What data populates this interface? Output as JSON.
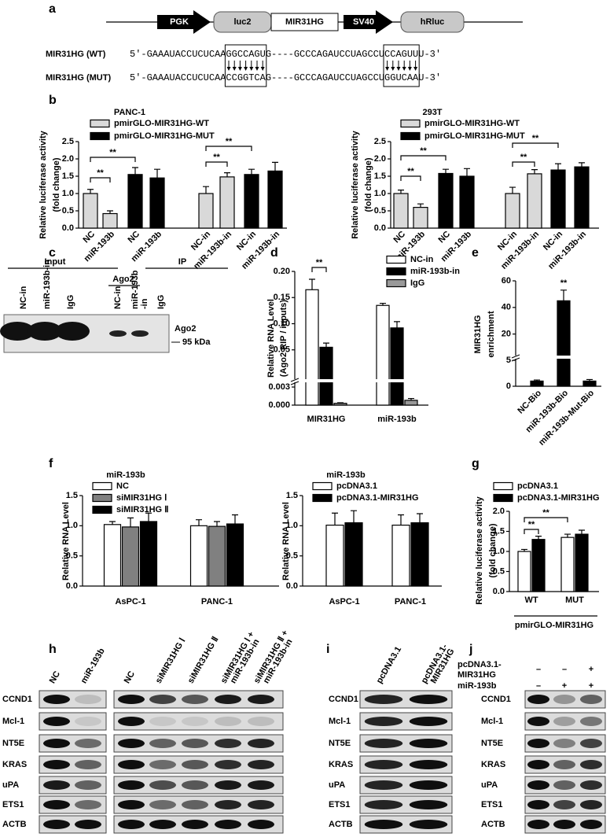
{
  "panel_labels": [
    "a",
    "b",
    "c",
    "d",
    "e",
    "f",
    "g",
    "h",
    "i",
    "j"
  ],
  "construct": {
    "elements": [
      "PGK",
      "luc2",
      "MIR31HG",
      "SV40",
      "hRluc"
    ],
    "sequences": [
      {
        "name": "MIR31HG (WT)",
        "text": "5'-GAAAUACCUCUCAAGGCCAGUG----GCCCAGAUCCUAGCCUCCAGUUU-3'"
      },
      {
        "name": "MIR31HG (MUT)",
        "text": "5'-GAAAUACCUCUCAACCGGTCAG----GCCCAGAUCCUAGCCUGGUCAAU-3'"
      }
    ]
  },
  "chart_data": [
    {
      "type": "bar",
      "title": "PANC-1",
      "ylabel": [
        "Relative luciferase activity",
        "(fold change)"
      ],
      "categories": [
        "NC",
        "miR-193b",
        "NC",
        "miR-193b",
        "NC-in",
        "miR-193b-in",
        "NC-in",
        "miR-193b-in"
      ],
      "series": [
        {
          "name": "pmirGLO-MIR31HG-WT",
          "color": "#d9d9d9",
          "values": [
            1.0,
            0.42,
            null,
            null,
            1.0,
            1.48,
            null,
            null
          ],
          "errors": [
            0.12,
            0.08,
            null,
            null,
            0.2,
            0.12,
            null,
            null
          ]
        },
        {
          "name": "pmirGLO-MIR31HG-MUT",
          "color": "#000000",
          "values": [
            null,
            null,
            1.55,
            1.45,
            null,
            null,
            1.55,
            1.65
          ],
          "errors": [
            null,
            null,
            0.2,
            0.25,
            null,
            null,
            0.15,
            0.25
          ]
        }
      ],
      "ylim": [
        0,
        2.5
      ],
      "yticks": [
        {
          "value": 0,
          "label": "0.0"
        },
        0.5,
        {
          "value": 1,
          "label": "1.0"
        },
        1.5,
        {
          "value": 2,
          "label": "2.0"
        },
        2.5
      ],
      "annotations": [
        "**",
        "**",
        "**",
        "**"
      ]
    },
    {
      "type": "bar",
      "title": "293T",
      "ylabel": [
        "Relative luciferase activity",
        "(fold change)"
      ],
      "categories": [
        "NC",
        "miR-193b",
        "NC",
        "miR-193b",
        "NC-in",
        "miR-193b-in",
        "NC-in",
        "miR-193b-in"
      ],
      "series": [
        {
          "name": "pmirGLO-MIR31HG-WT",
          "color": "#d9d9d9",
          "values": [
            1.0,
            0.6,
            null,
            null,
            1.0,
            1.57,
            null,
            null
          ],
          "errors": [
            0.1,
            0.1,
            null,
            null,
            0.18,
            0.12,
            null,
            null
          ]
        },
        {
          "name": "pmirGLO-MIR31HG-MUT",
          "color": "#000000",
          "values": [
            null,
            null,
            1.58,
            1.5,
            null,
            null,
            1.68,
            1.77
          ],
          "errors": [
            null,
            null,
            0.12,
            0.22,
            null,
            null,
            0.18,
            0.12
          ]
        }
      ],
      "ylim": [
        0,
        2.5
      ],
      "yticks": [
        {
          "value": 0,
          "label": "0.0"
        },
        0.5,
        {
          "value": 1,
          "label": "1.0"
        },
        1.5,
        {
          "value": 2,
          "label": "2.0"
        },
        2.5
      ],
      "annotations": [
        "**",
        "**",
        "**",
        "**"
      ]
    },
    {
      "type": "bar",
      "ylabel": [
        "Relative RNA Level",
        "(Ago2 RIP / inputs)"
      ],
      "categories": [
        "MIR31HG",
        "miR-193b"
      ],
      "series": [
        {
          "name": "NC-in",
          "color": "#ffffff",
          "values": [
            0.165,
            0.135
          ],
          "errors": [
            0.02,
            0.004
          ]
        },
        {
          "name": "miR-193b-in",
          "color": "#000000",
          "values": [
            0.055,
            0.092
          ],
          "errors": [
            0.008,
            0.012
          ]
        },
        {
          "name": "IgG",
          "color": "#999999",
          "values": [
            0.0003,
            0.0008
          ],
          "errors": [
            0.0001,
            0.0003
          ]
        }
      ],
      "ylim": [
        0,
        0.2
      ],
      "ybreak": 0.003,
      "yticks": [
        {
          "value": 0,
          "label": "0.000"
        },
        0.003,
        0.05,
        {
          "value": 0.1,
          "label": "0.10"
        },
        0.15,
        {
          "value": 0.2,
          "label": "0.20"
        }
      ],
      "annotations": [
        "**"
      ]
    },
    {
      "type": "bar",
      "ylabel": [
        "MIR31HG",
        "enrichment"
      ],
      "categories": [
        "NC-Bio",
        "miR-193b-Bio",
        "miR-193b-Mut-Bio"
      ],
      "series": [
        {
          "color": "#000000",
          "values": [
            1,
            45,
            1
          ],
          "errors": [
            0.2,
            8,
            0.3
          ]
        }
      ],
      "ylim": [
        0,
        60
      ],
      "ybreak": 5,
      "yticks": [
        0,
        5,
        20,
        40,
        60
      ],
      "annotations": [
        "**"
      ]
    },
    {
      "type": "bar",
      "title": "miR-193b",
      "ylabel": [
        "Relative RNA Level"
      ],
      "categories": [
        "AsPC-1",
        "PANC-1"
      ],
      "series": [
        {
          "name": "NC",
          "color": "#ffffff",
          "values": [
            1.02,
            1.0
          ],
          "errors": [
            0.05,
            0.1
          ]
        },
        {
          "name": "siMIR31HG Ⅰ",
          "color": "#808080",
          "values": [
            0.98,
            0.99
          ],
          "errors": [
            0.15,
            0.08
          ]
        },
        {
          "name": "siMIR31HG Ⅱ",
          "color": "#000000",
          "values": [
            1.07,
            1.03
          ],
          "errors": [
            0.14,
            0.15
          ]
        }
      ],
      "ylim": [
        0,
        1.5
      ],
      "yticks": [
        {
          "value": 0,
          "label": "0.0"
        },
        0.5,
        {
          "value": 1,
          "label": "1.0"
        },
        1.5
      ]
    },
    {
      "type": "bar",
      "title": "miR-193b",
      "ylabel": [
        "Relative RNA Level"
      ],
      "categories": [
        "AsPC-1",
        "PANC-1"
      ],
      "series": [
        {
          "name": "pcDNA3.1",
          "color": "#ffffff",
          "values": [
            1.01,
            1.01
          ],
          "errors": [
            0.2,
            0.17
          ]
        },
        {
          "name": "pcDNA3.1-MIR31HG",
          "color": "#000000",
          "values": [
            1.05,
            1.05
          ],
          "errors": [
            0.2,
            0.15
          ]
        }
      ],
      "ylim": [
        0,
        1.5
      ],
      "yticks": [
        {
          "value": 0,
          "label": "0.0"
        },
        0.5,
        {
          "value": 1,
          "label": "1.0"
        },
        1.5
      ]
    },
    {
      "type": "bar",
      "ylabel": [
        "Relative luciferase activity",
        "(fold change)"
      ],
      "xlabel": "pmirGLO-MIR31HG",
      "categories": [
        "WT",
        "MUT"
      ],
      "series": [
        {
          "name": "pcDNA3.1",
          "color": "#ffffff",
          "values": [
            1.0,
            1.35
          ],
          "errors": [
            0.05,
            0.08
          ]
        },
        {
          "name": "pcDNA3.1-MIR31HG",
          "color": "#000000",
          "values": [
            1.3,
            1.43
          ],
          "errors": [
            0.08,
            0.1
          ]
        }
      ],
      "ylim": [
        0,
        2
      ],
      "yticks": [
        {
          "value": 0,
          "label": "0.0"
        },
        0.5,
        {
          "value": 1,
          "label": "1.0"
        },
        1.5,
        {
          "value": 2,
          "label": "2.0"
        }
      ],
      "annotations": [
        "**",
        "**"
      ]
    }
  ],
  "rip_blot": {
    "groups": [
      "Input",
      "IP"
    ],
    "ip_antibody": "Ago2",
    "lanes": [
      [
        "NC-in"
      ],
      [
        "miR-193b-in"
      ],
      [
        "IgG"
      ],
      [
        "NC-in"
      ],
      [
        "miR-193b",
        "-in"
      ],
      [
        "IgG"
      ]
    ],
    "protein": "Ago2",
    "marker": "95 kDa"
  },
  "western_blots": {
    "rows": [
      "CCND1",
      "Mcl-1",
      "NT5E",
      "KRAS",
      "uPA",
      "ETS1",
      "ACTB"
    ],
    "h": [
      [
        [
          "NC"
        ],
        [
          "miR-193b"
        ]
      ],
      [
        [
          "NC"
        ],
        [
          "siMIR31HG Ⅰ"
        ],
        [
          "siMIR31HG Ⅱ"
        ],
        [
          "siMIR31HG Ⅰ +",
          "miR-193b-in"
        ],
        [
          "siMIR31HG Ⅱ +",
          "miR-193b-in"
        ]
      ]
    ],
    "i": [
      [
        [
          "pcDNA3.1"
        ],
        [
          "pcDNA3.1-",
          "MIR31HG"
        ]
      ]
    ],
    "j": {
      "conditions": [
        {
          "label": [
            "pcDNA3.1-",
            "MIR31HG"
          ],
          "signs": [
            "–",
            "–",
            "+"
          ]
        },
        {
          "label": [
            "miR-193b"
          ],
          "signs": [
            "–",
            "+",
            "+"
          ]
        }
      ]
    }
  }
}
